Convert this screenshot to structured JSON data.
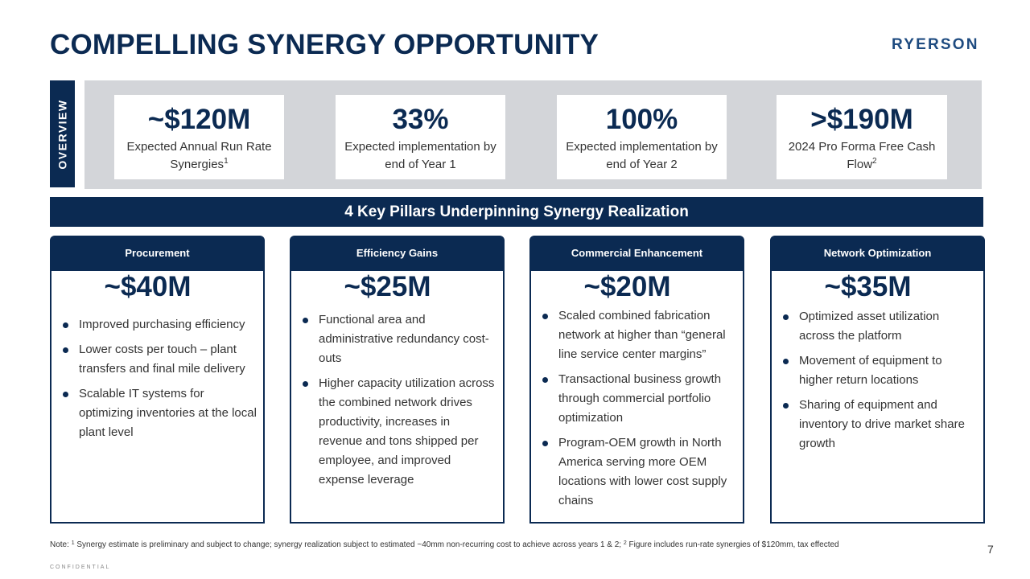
{
  "title": "COMPELLING SYNERGY OPPORTUNITY",
  "logo": "RYERSON",
  "overview": {
    "label": "OVERVIEW",
    "kpis": [
      {
        "value": "~$120M",
        "desc": "Expected Annual Run Rate Synergies",
        "sup": "1"
      },
      {
        "value": "33%",
        "desc": "Expected implementation by end of Year 1",
        "sup": ""
      },
      {
        "value": "100%",
        "desc": "Expected implementation by end of Year 2",
        "sup": ""
      },
      {
        "value": ">$190M",
        "desc": "2024 Pro Forma Free Cash Flow",
        "sup": "2"
      }
    ]
  },
  "pillars_title": "4 Key Pillars Underpinning Synergy Realization",
  "pillars": [
    {
      "name": "Procurement",
      "value": "~$40M",
      "bullets": [
        "Improved purchasing efficiency",
        "Lower costs per touch – plant transfers and final mile delivery",
        "Scalable IT systems for optimizing inventories at the local plant level"
      ]
    },
    {
      "name": "Efficiency Gains",
      "value": "~$25M",
      "bullets": [
        "Functional area and administrative redundancy cost-outs",
        "Higher capacity utilization across the combined network drives productivity, increases in revenue and tons shipped per employee, and improved expense leverage"
      ]
    },
    {
      "name": "Commercial Enhancement",
      "value": "~$20M",
      "bullets": [
        "Scaled combined fabrication network at higher than “general line service center margins”",
        "Transactional business growth through commercial portfolio optimization",
        "Program-OEM growth in North America serving more OEM locations with lower cost supply chains"
      ]
    },
    {
      "name": "Network Optimization",
      "value": "~$35M",
      "bullets": [
        "Optimized asset utilization across the platform",
        "Movement of equipment to higher return locations",
        "Sharing of equipment and inventory to drive market share growth"
      ]
    }
  ],
  "footnote": {
    "prefix": "Note: ",
    "sup1": "1",
    "text1": " Synergy estimate is preliminary and subject to change; synergy realization subject to estimated ~40mm non-recurring cost to achieve across years 1 & 2; ",
    "sup2": "2",
    "text2": " Figure includes run-rate synergies of $120mm, tax effected"
  },
  "page_number": "7",
  "confidential": "CONFIDENTIAL"
}
